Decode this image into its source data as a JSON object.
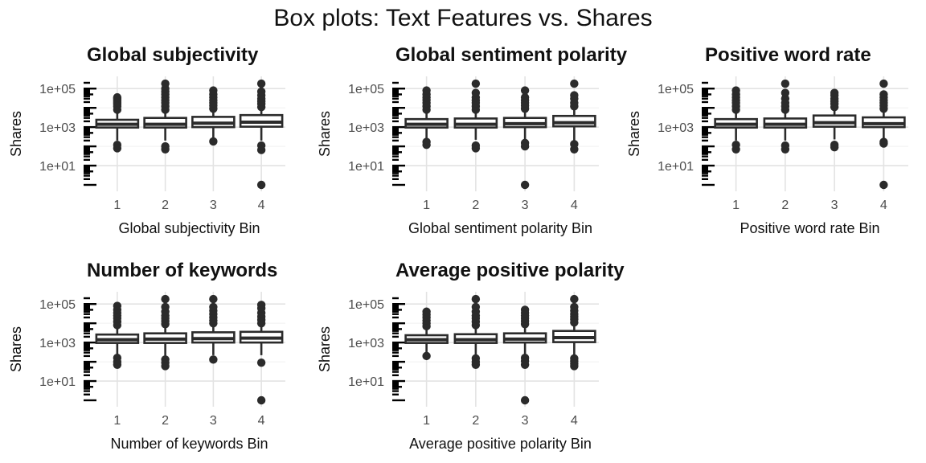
{
  "figure_title": "Box plots: Text Features vs. Shares",
  "chart_data": [
    {
      "type": "box",
      "title": "Global subjectivity",
      "xlabel": "Global subjectivity Bin",
      "ylabel": "Shares",
      "categories": [
        "1",
        "2",
        "3",
        "4"
      ],
      "yscale": "log10",
      "ylim": [
        1,
        200000
      ],
      "yticks": [
        10,
        1000,
        100000
      ],
      "ytick_labels": [
        "1e+01",
        "1e+03",
        "1e+05"
      ],
      "boxes": [
        {
          "category": "1",
          "whisker_low": 200,
          "q1": 950,
          "median": 1400,
          "q3": 2400,
          "whisker_high": 6000,
          "outliers": [
            120,
            80,
            8000,
            12000,
            16000,
            20000,
            25000,
            30000,
            35000
          ]
        },
        {
          "category": "2",
          "whisker_low": 200,
          "q1": 950,
          "median": 1400,
          "q3": 3000,
          "whisker_high": 6500,
          "outliers": [
            100,
            70,
            8000,
            12000,
            18000,
            25000,
            35000,
            50000,
            70000,
            100000,
            180000
          ]
        },
        {
          "category": "3",
          "whisker_low": 230,
          "q1": 1000,
          "median": 1600,
          "q3": 3400,
          "whisker_high": 7500,
          "outliers": [
            180,
            9000,
            13000,
            18000,
            25000,
            35000,
            50000,
            80000
          ]
        },
        {
          "category": "4",
          "whisker_low": 200,
          "q1": 1050,
          "median": 1800,
          "q3": 4200,
          "whisker_high": 9000,
          "outliers": [
            110,
            65,
            1,
            11000,
            16000,
            22000,
            30000,
            45000,
            70000,
            180000
          ]
        }
      ]
    },
    {
      "type": "box",
      "title": "Global sentiment polarity",
      "xlabel": "Global sentiment polarity Bin",
      "ylabel": "Shares",
      "categories": [
        "1",
        "2",
        "3",
        "4"
      ],
      "yscale": "log10",
      "ylim": [
        1,
        200000
      ],
      "yticks": [
        10,
        1000,
        100000
      ],
      "ytick_labels": [
        "1e+01",
        "1e+03",
        "1e+05"
      ],
      "boxes": [
        {
          "category": "1",
          "whisker_low": 250,
          "q1": 950,
          "median": 1400,
          "q3": 2600,
          "whisker_high": 6000,
          "outliers": [
            170,
            120,
            8000,
            12000,
            18000,
            26000,
            35000,
            50000,
            80000
          ]
        },
        {
          "category": "2",
          "whisker_low": 220,
          "q1": 950,
          "median": 1400,
          "q3": 2800,
          "whisker_high": 6500,
          "outliers": [
            110,
            80,
            8000,
            12000,
            18000,
            25000,
            35000,
            60000,
            180000
          ]
        },
        {
          "category": "3",
          "whisker_low": 230,
          "q1": 1000,
          "median": 1500,
          "q3": 3000,
          "whisker_high": 7000,
          "outliers": [
            150,
            100,
            1,
            9000,
            13000,
            18000,
            25000,
            35000,
            80000
          ]
        },
        {
          "category": "4",
          "whisker_low": 200,
          "q1": 1100,
          "median": 1700,
          "q3": 3800,
          "whisker_high": 8500,
          "outliers": [
            130,
            70,
            12000,
            18000,
            30000,
            45000,
            180000
          ]
        }
      ]
    },
    {
      "type": "box",
      "title": "Positive word rate",
      "xlabel": "Positive word rate Bin",
      "ylabel": "Shares",
      "categories": [
        "1",
        "2",
        "3",
        "4"
      ],
      "yscale": "log10",
      "ylim": [
        1,
        200000
      ],
      "yticks": [
        10,
        1000,
        100000
      ],
      "ytick_labels": [
        "1e+01",
        "1e+03",
        "1e+05"
      ],
      "boxes": [
        {
          "category": "1",
          "whisker_low": 200,
          "q1": 950,
          "median": 1400,
          "q3": 2600,
          "whisker_high": 6000,
          "outliers": [
            120,
            70,
            8000,
            12000,
            18000,
            25000,
            35000,
            50000,
            80000
          ]
        },
        {
          "category": "2",
          "whisker_low": 200,
          "q1": 950,
          "median": 1400,
          "q3": 2800,
          "whisker_high": 6500,
          "outliers": [
            110,
            70,
            8000,
            12000,
            18000,
            30000,
            60000,
            180000
          ]
        },
        {
          "category": "3",
          "whisker_low": 230,
          "q1": 1050,
          "median": 1700,
          "q3": 4000,
          "whisker_high": 9000,
          "outliers": [
            120,
            90,
            11000,
            16000,
            22000,
            30000,
            45000,
            60000
          ]
        },
        {
          "category": "4",
          "whisker_low": 220,
          "q1": 1000,
          "median": 1500,
          "q3": 3200,
          "whisker_high": 7000,
          "outliers": [
            170,
            140,
            1,
            9000,
            13000,
            18000,
            25000,
            35000,
            50000,
            180000
          ]
        }
      ]
    },
    {
      "type": "box",
      "title": "Number of keywords",
      "xlabel": "Number of keywords Bin",
      "ylabel": "Shares",
      "categories": [
        "1",
        "2",
        "3",
        "4"
      ],
      "yscale": "log10",
      "ylim": [
        1,
        200000
      ],
      "yticks": [
        10,
        1000,
        100000
      ],
      "ytick_labels": [
        "1e+01",
        "1e+03",
        "1e+05"
      ],
      "boxes": [
        {
          "category": "1",
          "whisker_low": 220,
          "q1": 950,
          "median": 1400,
          "q3": 2600,
          "whisker_high": 6000,
          "outliers": [
            160,
            100,
            70,
            8000,
            12000,
            18000,
            25000,
            35000,
            50000,
            80000
          ]
        },
        {
          "category": "2",
          "whisker_low": 200,
          "q1": 950,
          "median": 1500,
          "q3": 3000,
          "whisker_high": 7000,
          "outliers": [
            130,
            90,
            60,
            9000,
            13000,
            18000,
            25000,
            40000,
            70000,
            180000
          ]
        },
        {
          "category": "3",
          "whisker_low": 220,
          "q1": 1000,
          "median": 1600,
          "q3": 3400,
          "whisker_high": 7500,
          "outliers": [
            130,
            10000,
            14000,
            20000,
            30000,
            45000,
            70000,
            180000
          ]
        },
        {
          "category": "4",
          "whisker_low": 220,
          "q1": 1000,
          "median": 1700,
          "q3": 3600,
          "whisker_high": 8000,
          "outliers": [
            90,
            1,
            10000,
            15000,
            22000,
            35000,
            60000,
            90000
          ]
        }
      ]
    },
    {
      "type": "box",
      "title": "Average positive polarity",
      "xlabel": "Average positive polarity Bin",
      "ylabel": "Shares",
      "categories": [
        "1",
        "2",
        "3",
        "4"
      ],
      "yscale": "log10",
      "ylim": [
        1,
        200000
      ],
      "yticks": [
        10,
        1000,
        100000
      ],
      "ytick_labels": [
        "1e+01",
        "1e+03",
        "1e+05"
      ],
      "boxes": [
        {
          "category": "1",
          "whisker_low": 250,
          "q1": 950,
          "median": 1400,
          "q3": 2400,
          "whisker_high": 5500,
          "outliers": [
            200,
            7000,
            10000,
            14000,
            20000,
            28000,
            40000
          ]
        },
        {
          "category": "2",
          "whisker_low": 220,
          "q1": 950,
          "median": 1400,
          "q3": 2700,
          "whisker_high": 6500,
          "outliers": [
            150,
            100,
            70,
            8000,
            12000,
            18000,
            25000,
            40000,
            70000,
            180000
          ]
        },
        {
          "category": "3",
          "whisker_low": 220,
          "q1": 1000,
          "median": 1500,
          "q3": 3000,
          "whisker_high": 7000,
          "outliers": [
            160,
            110,
            70,
            1,
            9000,
            13000,
            18000,
            25000,
            35000,
            50000
          ]
        },
        {
          "category": "4",
          "whisker_low": 200,
          "q1": 1050,
          "median": 1800,
          "q3": 4000,
          "whisker_high": 9000,
          "outliers": [
            150,
            110,
            80,
            60,
            11000,
            16000,
            22000,
            30000,
            45000,
            70000,
            180000
          ]
        }
      ]
    }
  ]
}
